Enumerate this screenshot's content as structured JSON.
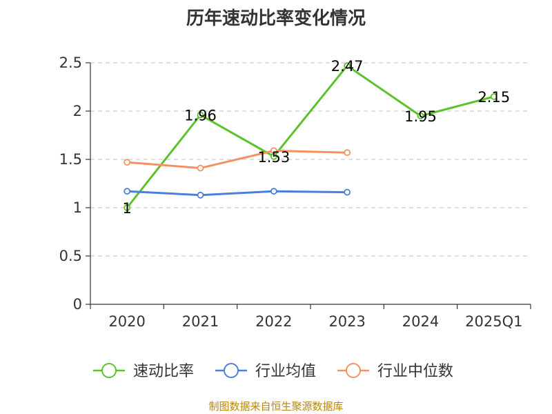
{
  "chart_data": {
    "type": "line",
    "title": "历年速动比率变化情况",
    "categories": [
      "2020",
      "2021",
      "2022",
      "2023",
      "2024",
      "2025Q1"
    ],
    "ylim": [
      0,
      2.5
    ],
    "yticks": [
      "0",
      "0.5",
      "1",
      "1.5",
      "2",
      "2.5"
    ],
    "grid": true,
    "legend_position": "bottom",
    "series": [
      {
        "name": "速动比率",
        "color": "#5bc22c",
        "values": [
          1,
          1.96,
          1.53,
          2.47,
          1.95,
          2.15
        ],
        "labels": [
          "1",
          "1.96",
          "1.53",
          "2.47",
          "1.95",
          "2.15"
        ]
      },
      {
        "name": "行业均值",
        "color": "#4a7fdc",
        "values": [
          1.17,
          1.13,
          1.17,
          1.16,
          null,
          null
        ]
      },
      {
        "name": "行业中位数",
        "color": "#f59160",
        "values": [
          1.47,
          1.41,
          1.59,
          1.57,
          null,
          null
        ]
      }
    ]
  },
  "footer": {
    "source": "制图数据来自恒生聚源数据库"
  }
}
